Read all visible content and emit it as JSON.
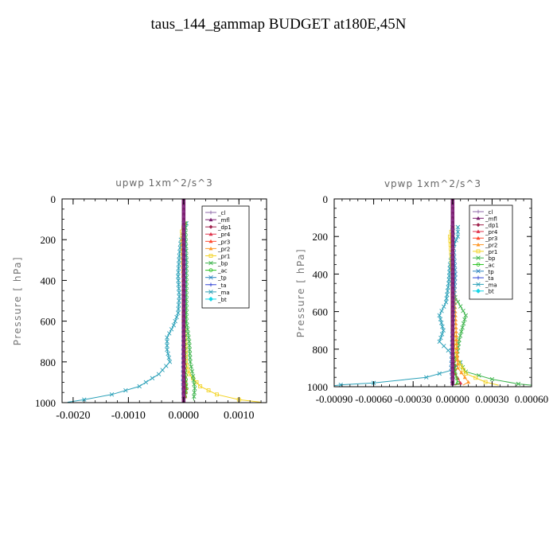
{
  "title": "taus_144_gammap  BUDGET at180E,45N",
  "legend_items": [
    "_cl",
    "_mfl",
    "_dp1",
    "_pr4",
    "_pr3",
    "_pr2",
    "_pr1",
    "_bp",
    "_ac",
    "_tp",
    "_ta",
    "_ma",
    "_bt"
  ],
  "series_colors": {
    "_cl": "#8e6aa8",
    "_mfl": "#7a1f6e",
    "_dp1": "#a0224c",
    "_pr4": "#e0344c",
    "_pr3": "#ff4a2e",
    "_pr2": "#ff9a2a",
    "_pr1": "#f3d21e",
    "_bp": "#3cb44b",
    "_ac": "#27c21f",
    "_tp": "#2e86c1",
    "_ta": "#3346d6",
    "_ma": "#2aa0b8",
    "_bt": "#16d6e8"
  },
  "chart_data": [
    {
      "type": "line",
      "title": "upwp   1xm^2/s^3",
      "ylabel": "Pressure  [ hPa]",
      "xlabel": "",
      "xlim": [
        -0.0022,
        0.0015
      ],
      "ylim": [
        1000,
        0
      ],
      "y_reversed": true,
      "xticks": [
        -0.002,
        -0.001,
        0.0,
        0.001
      ],
      "xtick_labels": [
        "-0.0020",
        "-0.0010",
        "0.0000",
        "0.0010"
      ],
      "yticks": [
        0,
        200,
        400,
        600,
        800,
        1000
      ],
      "ytick_labels": [
        "0",
        "200",
        "400",
        "600",
        "800",
        "1000"
      ],
      "legend_position": "top-right",
      "series": [
        {
          "name": "_ma",
          "points": [
            [
              5e-05,
              120
            ],
            [
              1e-05,
              160
            ],
            [
              -5e-05,
              200
            ],
            [
              -8e-05,
              280
            ],
            [
              -0.0001,
              380
            ],
            [
              -8e-05,
              480
            ],
            [
              -0.0001,
              560
            ],
            [
              -0.00018,
              620
            ],
            [
              -0.0003,
              680
            ],
            [
              -0.0003,
              740
            ],
            [
              -0.00025,
              800
            ],
            [
              -0.00045,
              860
            ],
            [
              -0.0008,
              920
            ],
            [
              -0.0013,
              960
            ],
            [
              -0.0018,
              985
            ],
            [
              -0.0021,
              998
            ]
          ]
        },
        {
          "name": "_pr1",
          "points": [
            [
              2e-05,
              120
            ],
            [
              -3e-05,
              160
            ],
            [
              -2e-05,
              250
            ],
            [
              0.0,
              400
            ],
            [
              0.0,
              600
            ],
            [
              3e-05,
              700
            ],
            [
              4e-05,
              800
            ],
            [
              0.0001,
              860
            ],
            [
              0.0003,
              920
            ],
            [
              0.0006,
              960
            ],
            [
              0.001,
              985
            ],
            [
              0.0014,
              998
            ]
          ]
        },
        {
          "name": "_bp",
          "points": [
            [
              3e-05,
              120
            ],
            [
              5e-05,
              300
            ],
            [
              5e-05,
              600
            ],
            [
              0.0001,
              700
            ],
            [
              0.00012,
              800
            ],
            [
              0.00017,
              870
            ],
            [
              0.0002,
              930
            ],
            [
              0.00018,
              990
            ]
          ]
        },
        {
          "name": "_pr2",
          "points": [
            [
              1e-05,
              120
            ],
            [
              -2e-05,
              200
            ],
            [
              -1e-05,
              400
            ],
            [
              0.0,
              700
            ],
            [
              2e-05,
              850
            ],
            [
              5e-05,
              930
            ],
            [
              2e-05,
              990
            ]
          ]
        },
        {
          "name": "_pr4",
          "points": [
            [
              0.0,
              120
            ],
            [
              0.0,
              600
            ],
            [
              2e-05,
              850
            ],
            [
              4e-05,
              930
            ],
            [
              1e-05,
              990
            ]
          ]
        },
        {
          "name": "_ac",
          "points": [
            [
              0.0,
              120
            ],
            [
              1e-05,
              500
            ],
            [
              2e-05,
              800
            ],
            [
              5e-05,
              930
            ],
            [
              1e-05,
              990
            ]
          ]
        },
        {
          "name": "_tp",
          "points": [
            [
              0.0,
              120
            ],
            [
              3e-05,
              300
            ],
            [
              0.0,
              600
            ],
            [
              -1e-05,
              900
            ],
            [
              0.0,
              990
            ]
          ]
        },
        {
          "name": "_mfl",
          "points": [
            [
              0.0,
              0
            ],
            [
              0.0,
              1000
            ]
          ]
        }
      ]
    },
    {
      "type": "line",
      "title": "vpwp   1xm^2/s^3",
      "ylabel": "Pressure  [ hPa]",
      "xlabel": "",
      "xlim": [
        -0.0009,
        0.0006
      ],
      "ylim": [
        1000,
        0
      ],
      "y_reversed": true,
      "xticks": [
        -0.0009,
        -0.0006,
        -0.0003,
        0.0,
        0.0003,
        0.0006
      ],
      "xtick_labels": [
        "-0.00090",
        "-0.00060",
        "-0.00030",
        "0.00000",
        "0.00030",
        "0.00060"
      ],
      "yticks": [
        0,
        200,
        400,
        600,
        800,
        1000
      ],
      "ytick_labels": [
        "0",
        "200",
        "400",
        "600",
        "800",
        "1000"
      ],
      "legend_position": "top-right",
      "series": [
        {
          "name": "_ma",
          "points": [
            [
              4e-05,
              150
            ],
            [
              4e-05,
              200
            ],
            [
              0.0,
              260
            ],
            [
              -2e-05,
              350
            ],
            [
              -3e-05,
              450
            ],
            [
              -5e-05,
              550
            ],
            [
              -0.0001,
              620
            ],
            [
              -7e-05,
              700
            ],
            [
              -0.0001,
              760
            ],
            [
              0.0,
              830
            ],
            [
              6e-05,
              870
            ],
            [
              0.0,
              910
            ],
            [
              -0.0002,
              950
            ],
            [
              -0.0006,
              980
            ],
            [
              -0.00085,
              990
            ],
            [
              -0.0009,
              995
            ]
          ]
        },
        {
          "name": "_bp",
          "points": [
            [
              0.0,
              150
            ],
            [
              0.0,
              500
            ],
            [
              0.0001,
              620
            ],
            [
              5e-05,
              750
            ],
            [
              3e-05,
              850
            ],
            [
              0.0001,
              920
            ],
            [
              0.0003,
              960
            ],
            [
              0.0005,
              985
            ],
            [
              0.0006,
              992
            ]
          ]
        },
        {
          "name": "_pr1",
          "points": [
            [
              0.0,
              150
            ],
            [
              -2e-05,
              200
            ],
            [
              0.0,
              400
            ],
            [
              0.0,
              700
            ],
            [
              3e-05,
              850
            ],
            [
              0.0001,
              930
            ],
            [
              0.00025,
              975
            ],
            [
              0.00035,
              992
            ]
          ]
        },
        {
          "name": "_pr2",
          "points": [
            [
              0.0,
              150
            ],
            [
              2e-05,
              600
            ],
            [
              4e-05,
              900
            ],
            [
              0.00012,
              975
            ],
            [
              8e-05,
              992
            ]
          ]
        },
        {
          "name": "_pr4",
          "points": [
            [
              0.0,
              150
            ],
            [
              0.0,
              800
            ],
            [
              2e-05,
              930
            ],
            [
              6e-05,
              980
            ],
            [
              2e-05,
              992
            ]
          ]
        },
        {
          "name": "_ac",
          "points": [
            [
              0.0,
              150
            ],
            [
              0.0,
              800
            ],
            [
              2e-05,
              930
            ],
            [
              4e-05,
              980
            ],
            [
              1e-05,
              992
            ]
          ]
        },
        {
          "name": "_tp",
          "points": [
            [
              0.0,
              150
            ],
            [
              2e-05,
              400
            ],
            [
              0.0,
              700
            ],
            [
              -1e-05,
              900
            ],
            [
              0.0,
              990
            ]
          ]
        },
        {
          "name": "_mfl",
          "points": [
            [
              0.0,
              0
            ],
            [
              0.0,
              992
            ]
          ]
        }
      ]
    }
  ]
}
